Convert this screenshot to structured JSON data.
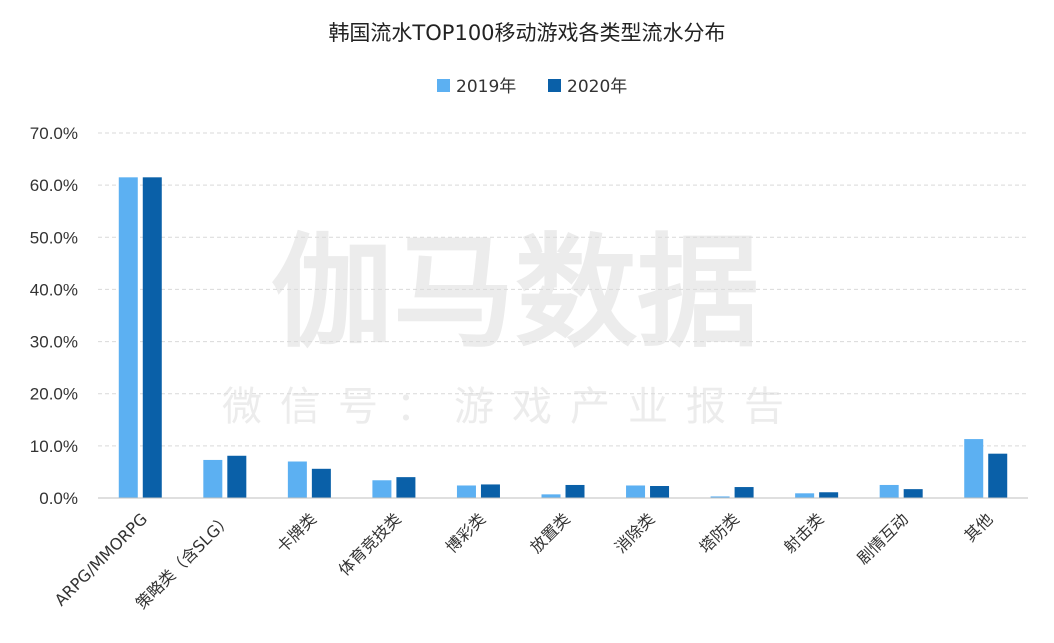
{
  "watermark": {
    "main": "伽马数据",
    "sub": "微信号：游戏产业报告"
  },
  "chart_data": {
    "type": "bar",
    "title": "韩国流水TOP100移动游戏各类型流水分布",
    "xlabel": "",
    "ylabel": "",
    "ylim": [
      0,
      70
    ],
    "yticks": [
      "0.0%",
      "10.0%",
      "20.0%",
      "30.0%",
      "40.0%",
      "50.0%",
      "60.0%",
      "70.0%"
    ],
    "grid": true,
    "legend_position": "top-center",
    "categories": [
      "ARPG/MMORPG",
      "策略类（含SLG）",
      "卡牌类",
      "体育竞技类",
      "博彩类",
      "放置类",
      "消除类",
      "塔防类",
      "射击类",
      "剧情互动",
      "其他"
    ],
    "series": [
      {
        "name": "2019年",
        "color": "#5cb0f2",
        "values": [
          61.5,
          7.3,
          7.0,
          3.4,
          2.4,
          0.7,
          2.4,
          0.3,
          0.9,
          2.5,
          11.3
        ]
      },
      {
        "name": "2020年",
        "color": "#0a60a8",
        "values": [
          61.5,
          8.1,
          5.6,
          4.0,
          2.6,
          2.5,
          2.3,
          2.1,
          1.1,
          1.7,
          8.5
        ]
      }
    ]
  }
}
